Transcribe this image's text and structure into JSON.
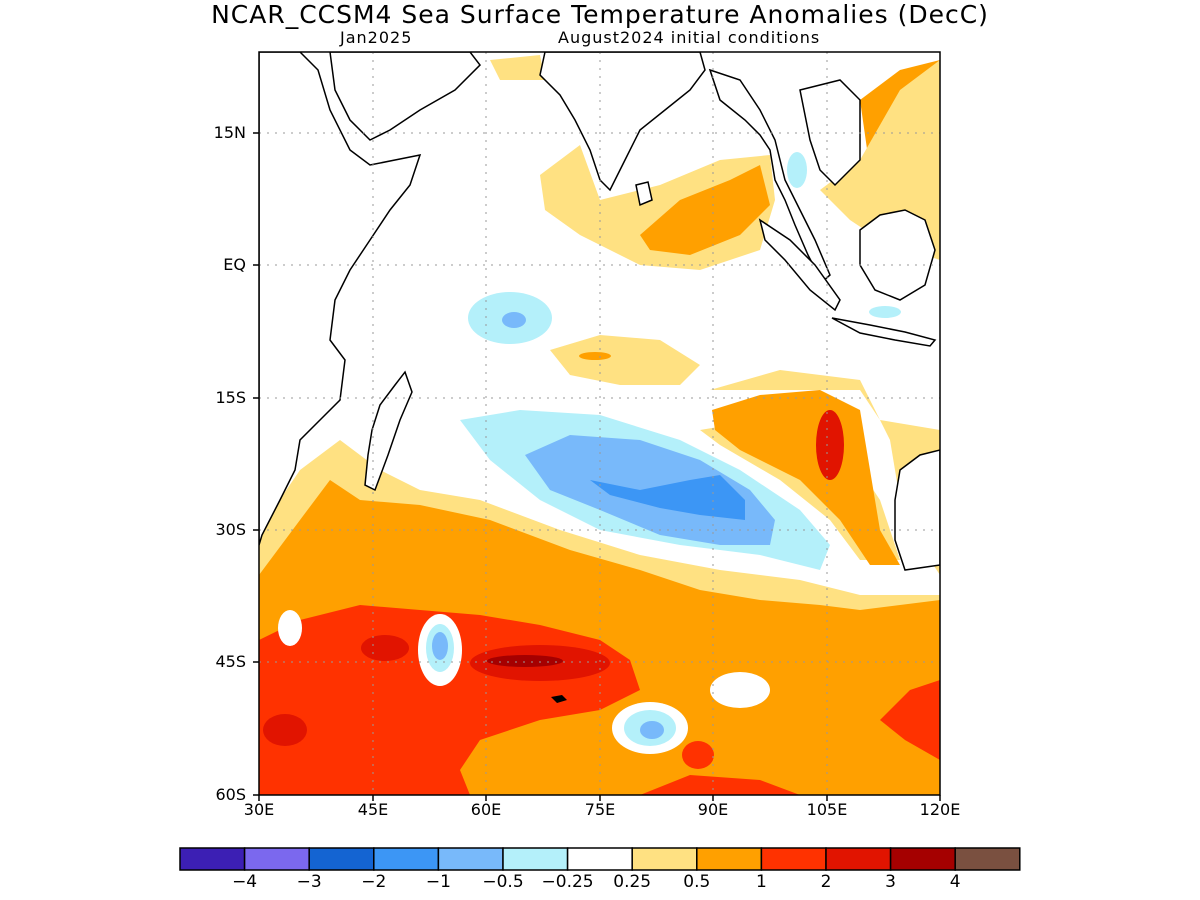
{
  "header": {
    "title": "NCAR_CCSM4 Sea Surface Temperature Anomalies (DecC)",
    "subtitle_left": "Jan2025",
    "subtitle_right": "August2024 initial conditions"
  },
  "map": {
    "lat_labels": [
      "15N",
      "EQ",
      "15S",
      "30S",
      "45S",
      "60S"
    ],
    "lon_labels": [
      "30E",
      "45E",
      "60E",
      "75E",
      "90E",
      "105E",
      "120E"
    ],
    "lon_range": [
      30,
      120
    ],
    "lat_range": [
      -60,
      24
    ],
    "grid": "dotted"
  },
  "colorbar": {
    "colors": [
      "#3c1fb4",
      "#7b68ee",
      "#1464d2",
      "#3c96f5",
      "#78b9fa",
      "#b4f0fa",
      "#ffffff",
      "#ffe182",
      "#ffa000",
      "#ff3200",
      "#e11400",
      "#a50000",
      "#7a5040"
    ],
    "labels": [
      "−4",
      "−3",
      "−2",
      "−1",
      "−0.5",
      "−0.25",
      "0.25",
      "0.5",
      "1",
      "2",
      "3",
      "4"
    ]
  }
}
